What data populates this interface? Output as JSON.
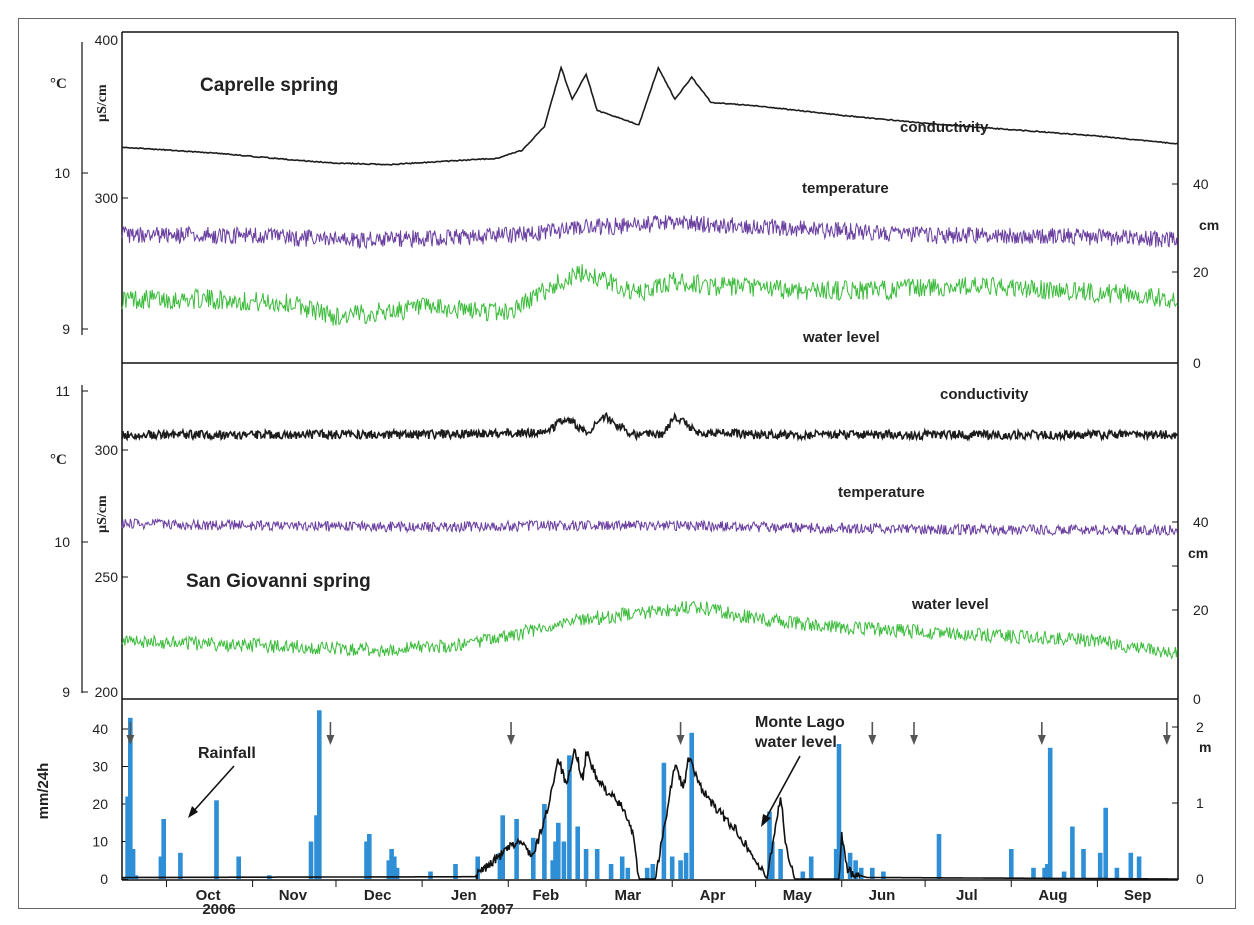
{
  "colors": {
    "conductivity": "#1c1c1c",
    "temperature": "#6a3fa0",
    "water_level": "#3cbc3c",
    "rainfall": "#2f8fd6",
    "lake": "#111111",
    "arrow": "#555555"
  },
  "chart_data": [
    {
      "type": "line",
      "title": "Caprelle spring",
      "x_range": [
        "2006-09-15",
        "2007-09-30"
      ],
      "left_axis_temperature": {
        "unit": "°C",
        "ticks": [
          "10",
          "9"
        ]
      },
      "left_axis_conductivity": {
        "unit": "µS/cm",
        "ticks": [
          "400",
          "300"
        ]
      },
      "right_axis_water_level": {
        "unit": "cm",
        "ticks": [
          "40",
          "20",
          "0"
        ],
        "ylim": [
          0,
          40
        ]
      },
      "series": [
        {
          "name": "conductivity",
          "unit": "µS/cm",
          "x": [
            "2006-09-15",
            "2006-10-20",
            "2006-11-15",
            "2006-12-01",
            "2006-12-20",
            "2007-01-28",
            "2007-02-06",
            "2007-02-14",
            "2007-02-20",
            "2007-02-24",
            "2007-03-01",
            "2007-03-05",
            "2007-03-20",
            "2007-03-27",
            "2007-04-02",
            "2007-04-08",
            "2007-04-15",
            "2007-05-01",
            "2007-06-01",
            "2007-07-01",
            "2007-08-01",
            "2007-09-01",
            "2007-09-30"
          ],
          "values": [
            332,
            328,
            324,
            322,
            321,
            325,
            330,
            345,
            382,
            362,
            378,
            355,
            346,
            382,
            362,
            376,
            360,
            358,
            352,
            347,
            343,
            339,
            334
          ]
        },
        {
          "name": "temperature",
          "unit": "°C",
          "x": [
            "2006-09-15",
            "2006-11-01",
            "2006-12-01",
            "2007-01-01",
            "2007-02-01",
            "2007-03-01",
            "2007-04-01",
            "2007-05-01",
            "2007-06-01",
            "2007-07-01",
            "2007-08-01",
            "2007-09-01",
            "2007-09-30"
          ],
          "values": [
            9.6,
            9.6,
            9.57,
            9.58,
            9.6,
            9.65,
            9.68,
            9.66,
            9.63,
            9.6,
            9.6,
            9.59,
            9.57
          ]
        },
        {
          "name": "water level",
          "unit": "cm",
          "x": [
            "2006-09-15",
            "2006-10-15",
            "2006-11-15",
            "2006-12-01",
            "2007-01-01",
            "2007-02-01",
            "2007-02-20",
            "2007-03-01",
            "2007-03-20",
            "2007-04-01",
            "2007-04-15",
            "2007-05-15",
            "2007-06-15",
            "2007-07-15",
            "2007-08-15",
            "2007-09-15",
            "2007-09-30"
          ],
          "values": [
            14,
            14,
            13,
            10,
            12,
            11,
            18,
            20,
            15,
            18,
            17,
            16,
            16,
            17,
            16,
            15,
            14
          ]
        }
      ]
    },
    {
      "type": "line",
      "title": "San Giovanni spring",
      "x_range": [
        "2006-09-15",
        "2007-09-30"
      ],
      "left_axis_temperature": {
        "unit": "°C",
        "ticks": [
          "11",
          "10",
          "9"
        ]
      },
      "left_axis_conductivity": {
        "unit": "µS/cm",
        "ticks": [
          "300",
          "250",
          "200"
        ]
      },
      "right_axis_water_level": {
        "unit": "cm",
        "ticks": [
          "40",
          "20",
          "0"
        ],
        "ylim": [
          0,
          40
        ]
      },
      "series": [
        {
          "name": "conductivity",
          "unit": "µS/cm",
          "x": [
            "2006-09-15",
            "2007-01-01",
            "2007-02-15",
            "2007-02-22",
            "2007-03-01",
            "2007-03-08",
            "2007-03-18",
            "2007-03-28",
            "2007-04-02",
            "2007-04-10",
            "2007-05-01",
            "2007-09-30"
          ],
          "values": [
            306,
            306,
            307,
            313,
            307,
            313,
            306,
            306,
            313,
            307,
            306,
            306
          ]
        },
        {
          "name": "temperature",
          "unit": "°C",
          "x": [
            "2006-09-15",
            "2006-11-01",
            "2007-01-01",
            "2007-03-01",
            "2007-04-01",
            "2007-06-01",
            "2007-08-01",
            "2007-09-30"
          ],
          "values": [
            10.12,
            10.11,
            10.1,
            10.11,
            10.11,
            10.09,
            10.08,
            10.08
          ]
        },
        {
          "name": "water level",
          "unit": "cm",
          "x": [
            "2006-09-15",
            "2006-11-01",
            "2006-12-15",
            "2007-01-15",
            "2007-02-15",
            "2007-03-01",
            "2007-04-01",
            "2007-04-08",
            "2007-05-01",
            "2007-06-01",
            "2007-07-01",
            "2007-08-01",
            "2007-09-01",
            "2007-09-30"
          ],
          "values": [
            13,
            12,
            11,
            12,
            16,
            18,
            20,
            21,
            18,
            16,
            15,
            14,
            13,
            10
          ]
        }
      ]
    },
    {
      "type": "bar",
      "title": "",
      "xlabel": "",
      "ylabel": "mm/24h",
      "ylim": [
        0,
        45
      ],
      "y_ticks": [
        "0",
        "10",
        "20",
        "30",
        "40"
      ],
      "right_axis": {
        "unit": "m",
        "ticks": [
          "0",
          "1",
          "2"
        ],
        "ylim": [
          0,
          2.2
        ]
      },
      "x_month_labels": [
        "Oct",
        "Nov",
        "Dec",
        "Jen",
        "Feb",
        "Mar",
        "Apr",
        "May",
        "Jun",
        "Jul",
        "Aug",
        "Sep"
      ],
      "x_year_labels": [
        "2006",
        "2007"
      ],
      "annotations": [
        "Rainfall",
        "Monte Lago",
        "water level"
      ],
      "sampling_dates": [
        "2006-09-18",
        "2006-11-29",
        "2007-02-02",
        "2007-04-04",
        "2007-06-12",
        "2007-06-27",
        "2007-08-12",
        "2007-09-26"
      ],
      "series": [
        {
          "name": "Rainfall",
          "unit": "mm/24h",
          "x": [
            "2006-09-17",
            "2006-09-18",
            "2006-09-19",
            "2006-09-20",
            "2006-09-29",
            "2006-09-30",
            "2006-10-06",
            "2006-10-19",
            "2006-10-27",
            "2006-11-07",
            "2006-11-22",
            "2006-11-24",
            "2006-11-25",
            "2006-12-12",
            "2006-12-13",
            "2006-12-20",
            "2006-12-21",
            "2006-12-22",
            "2006-12-23",
            "2007-01-04",
            "2007-01-13",
            "2007-01-21",
            "2007-01-29",
            "2007-01-30",
            "2007-02-04",
            "2007-02-10",
            "2007-02-14",
            "2007-02-17",
            "2007-02-18",
            "2007-02-19",
            "2007-02-21",
            "2007-02-23",
            "2007-02-26",
            "2007-03-01",
            "2007-03-05",
            "2007-03-10",
            "2007-03-14",
            "2007-03-16",
            "2007-03-23",
            "2007-03-25",
            "2007-03-29",
            "2007-04-01",
            "2007-04-04",
            "2007-04-06",
            "2007-04-08",
            "2007-05-06",
            "2007-05-07",
            "2007-05-10",
            "2007-05-18",
            "2007-05-21",
            "2007-05-30",
            "2007-05-31",
            "2007-06-01",
            "2007-06-04",
            "2007-06-06",
            "2007-06-08",
            "2007-06-12",
            "2007-06-16",
            "2007-07-06",
            "2007-08-01",
            "2007-08-09",
            "2007-08-13",
            "2007-08-14",
            "2007-08-15",
            "2007-08-20",
            "2007-08-23",
            "2007-08-27",
            "2007-09-02",
            "2007-09-04",
            "2007-09-08",
            "2007-09-13",
            "2007-09-16"
          ],
          "values": [
            22,
            43,
            8,
            1,
            6,
            16,
            7,
            21,
            6,
            1,
            10,
            17,
            45,
            10,
            12,
            5,
            8,
            6,
            3,
            2,
            4,
            6,
            7,
            17,
            16,
            11,
            20,
            5,
            10,
            15,
            10,
            33,
            14,
            8,
            8,
            4,
            6,
            3,
            3,
            4,
            31,
            6,
            5,
            7,
            39,
            18,
            10,
            8,
            2,
            6,
            8,
            36,
            10,
            7,
            5,
            3,
            3,
            2,
            12,
            8,
            3,
            3,
            4,
            35,
            2,
            14,
            8,
            7,
            19,
            3,
            7,
            6
          ]
        },
        {
          "name": "Monte Lago water level",
          "unit": "m",
          "x": [
            "2006-09-15",
            "2007-01-20",
            "2007-02-01",
            "2007-02-05",
            "2007-02-10",
            "2007-02-15",
            "2007-02-19",
            "2007-02-22",
            "2007-02-25",
            "2007-02-28",
            "2007-03-01",
            "2007-03-05",
            "2007-03-10",
            "2007-03-15",
            "2007-03-18",
            "2007-03-20",
            "2007-03-22",
            "2007-03-26",
            "2007-03-31",
            "2007-04-02",
            "2007-04-05",
            "2007-04-07",
            "2007-04-10",
            "2007-04-15",
            "2007-04-25",
            "2007-05-05",
            "2007-05-10",
            "2007-05-12",
            "2007-05-15",
            "2007-05-31",
            "2007-06-01",
            "2007-06-03",
            "2007-06-10",
            "2007-09-30"
          ],
          "values": [
            0.02,
            0.03,
            0.4,
            0.5,
            0.3,
            0.9,
            1.6,
            1.2,
            1.7,
            1.3,
            1.7,
            1.3,
            1.1,
            0.9,
            0.6,
            0.0,
            0.0,
            0.0,
            1.1,
            1.5,
            1.2,
            1.6,
            1.3,
            1.0,
            0.6,
            0.0,
            1.1,
            0.4,
            0.0,
            0.0,
            0.6,
            0.1,
            0.02,
            0.0
          ]
        }
      ]
    }
  ]
}
